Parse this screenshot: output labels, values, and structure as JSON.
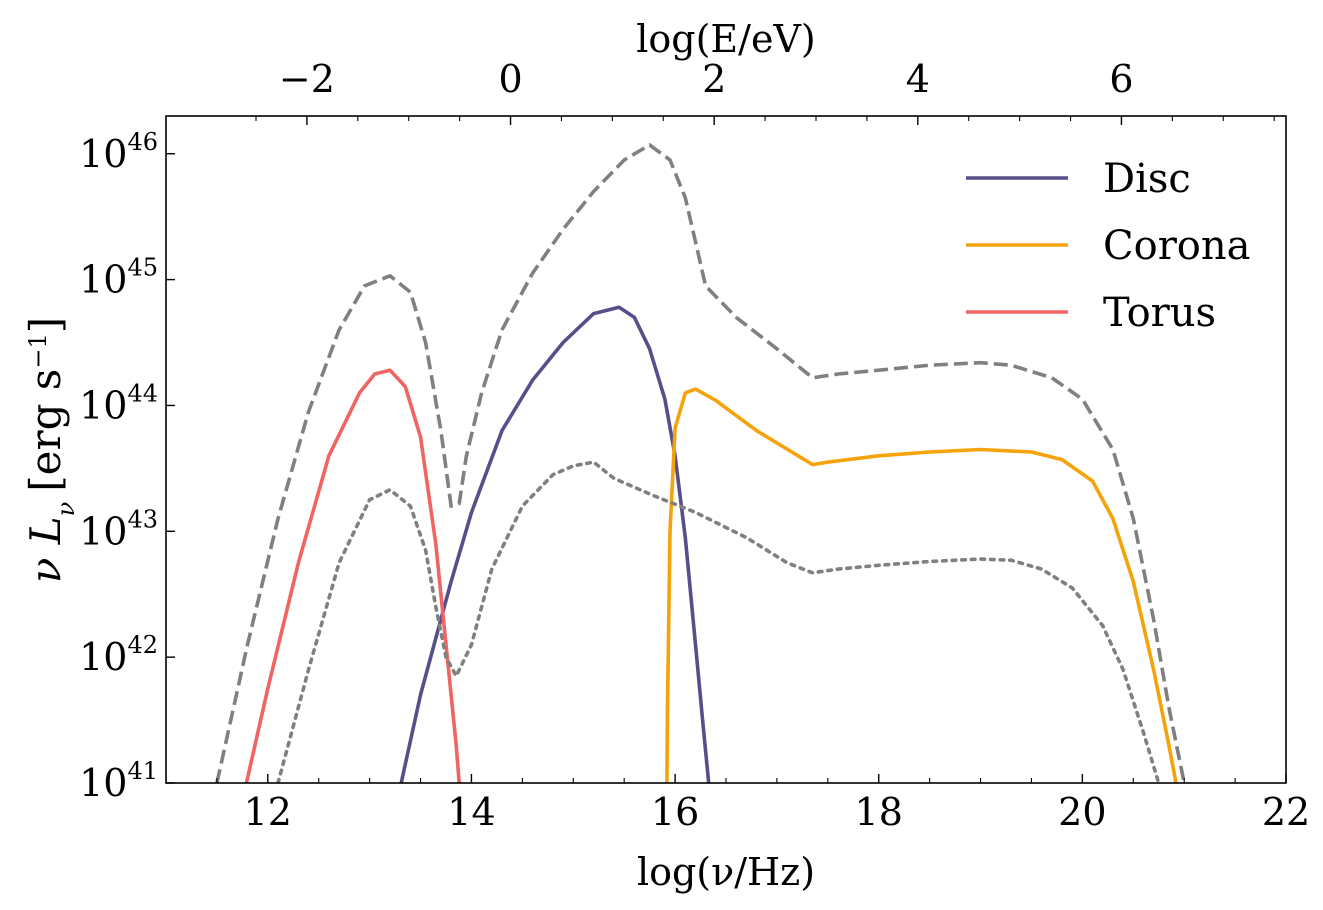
{
  "chart_data": {
    "type": "line",
    "x_label": "log(ν/Hz)",
    "top_label": "log(E/eV)",
    "y_label": "ν L_ν [erg s⁻¹]",
    "y_label_main": "ν L",
    "y_label_sub": "ν",
    "y_label_units": "[erg s",
    "y_label_units_sup": "−1",
    "y_label_units_close": "]",
    "xlim": [
      11.0,
      22.0
    ],
    "ylim_log10": [
      41,
      46.3
    ],
    "y_scale": "log",
    "top_axis_eV_offset_log10": 14.3838,
    "x_ticks": [
      "12",
      "14",
      "16",
      "18",
      "20",
      "22"
    ],
    "x_tick_values": [
      12,
      14,
      16,
      18,
      20,
      22
    ],
    "top_ticks": [
      "−2",
      "0",
      "2",
      "4",
      "6"
    ],
    "top_tick_values": [
      -2,
      0,
      2,
      4,
      6
    ],
    "y_tick_base": "10",
    "y_tick_exponents": [
      "41",
      "42",
      "43",
      "44",
      "45",
      "46"
    ],
    "y_tick_values_log10": [
      41,
      42,
      43,
      44,
      45,
      46
    ],
    "legend_position": "upper-right",
    "series": [
      {
        "name": "Disc",
        "color": "#56508a",
        "style": "solid",
        "x": [
          13.31,
          13.5,
          13.8,
          14.0,
          14.3,
          14.6,
          14.9,
          15.2,
          15.45,
          15.6,
          15.75,
          15.9,
          16.0,
          16.1,
          16.2,
          16.27,
          16.33
        ],
        "log10_y": [
          41.0,
          41.7,
          42.6,
          43.15,
          43.8,
          44.2,
          44.5,
          44.73,
          44.78,
          44.7,
          44.45,
          44.05,
          43.6,
          42.95,
          42.1,
          41.5,
          41.0
        ]
      },
      {
        "name": "Corona",
        "color": "#f5a30a",
        "style": "solid",
        "x": [
          15.92,
          15.925,
          15.95,
          16.0,
          16.1,
          16.2,
          16.4,
          16.8,
          17.35,
          17.5,
          18.0,
          18.5,
          19.0,
          19.5,
          19.8,
          20.1,
          20.3,
          20.5,
          20.7,
          20.85,
          20.92
        ],
        "log10_y": [
          41.0,
          41.6,
          43.0,
          43.82,
          44.1,
          44.13,
          44.04,
          43.8,
          43.53,
          43.55,
          43.6,
          43.63,
          43.65,
          43.63,
          43.57,
          43.4,
          43.1,
          42.6,
          41.9,
          41.3,
          41.0
        ]
      },
      {
        "name": "Torus",
        "color": "#f06464",
        "style": "solid",
        "x": [
          11.79,
          12.0,
          12.3,
          12.6,
          12.9,
          13.05,
          13.2,
          13.35,
          13.5,
          13.65,
          13.75,
          13.85,
          13.88
        ],
        "log10_y": [
          41.0,
          41.75,
          42.75,
          43.6,
          44.1,
          44.25,
          44.28,
          44.15,
          43.75,
          42.9,
          42.1,
          41.3,
          41.0
        ]
      },
      {
        "name": "",
        "color": "#808080",
        "style": "dashed",
        "x": [
          11.5,
          11.8,
          12.1,
          12.4,
          12.7,
          12.95,
          13.2,
          13.4,
          13.55,
          13.7,
          13.8,
          13.88,
          13.95,
          14.1,
          14.3,
          14.6,
          14.9,
          15.2,
          15.5,
          15.75,
          15.95,
          16.1,
          16.2,
          16.3,
          16.6,
          17.0,
          17.35,
          17.6,
          18.0,
          18.5,
          19.0,
          19.3,
          19.7,
          20.0,
          20.3,
          20.5,
          20.7,
          20.85,
          21.0
        ],
        "log10_y": [
          41.0,
          42.1,
          43.1,
          43.95,
          44.6,
          44.95,
          45.03,
          44.9,
          44.5,
          43.8,
          43.2,
          43.22,
          43.6,
          44.1,
          44.6,
          45.05,
          45.4,
          45.7,
          45.95,
          46.07,
          45.95,
          45.65,
          45.3,
          44.95,
          44.7,
          44.45,
          44.22,
          44.25,
          44.28,
          44.32,
          44.34,
          44.32,
          44.22,
          44.05,
          43.65,
          43.1,
          42.3,
          41.6,
          41.0
        ]
      },
      {
        "name": "",
        "color": "#808080",
        "style": "dotted",
        "x": [
          12.1,
          12.4,
          12.7,
          13.0,
          13.2,
          13.4,
          13.55,
          13.65,
          13.75,
          13.85,
          14.0,
          14.2,
          14.5,
          14.8,
          15.0,
          15.2,
          15.4,
          15.8,
          16.2,
          16.7,
          17.1,
          17.35,
          17.6,
          18.0,
          18.5,
          19.0,
          19.3,
          19.6,
          19.9,
          20.2,
          20.4,
          20.6,
          20.75
        ],
        "log10_y": [
          41.0,
          41.9,
          42.75,
          43.25,
          43.33,
          43.2,
          42.85,
          42.4,
          42.0,
          41.85,
          42.1,
          42.7,
          43.2,
          43.45,
          43.52,
          43.55,
          43.42,
          43.28,
          43.15,
          42.95,
          42.75,
          42.67,
          42.7,
          42.73,
          42.76,
          42.78,
          42.77,
          42.7,
          42.55,
          42.25,
          41.9,
          41.4,
          41.0
        ]
      }
    ]
  }
}
